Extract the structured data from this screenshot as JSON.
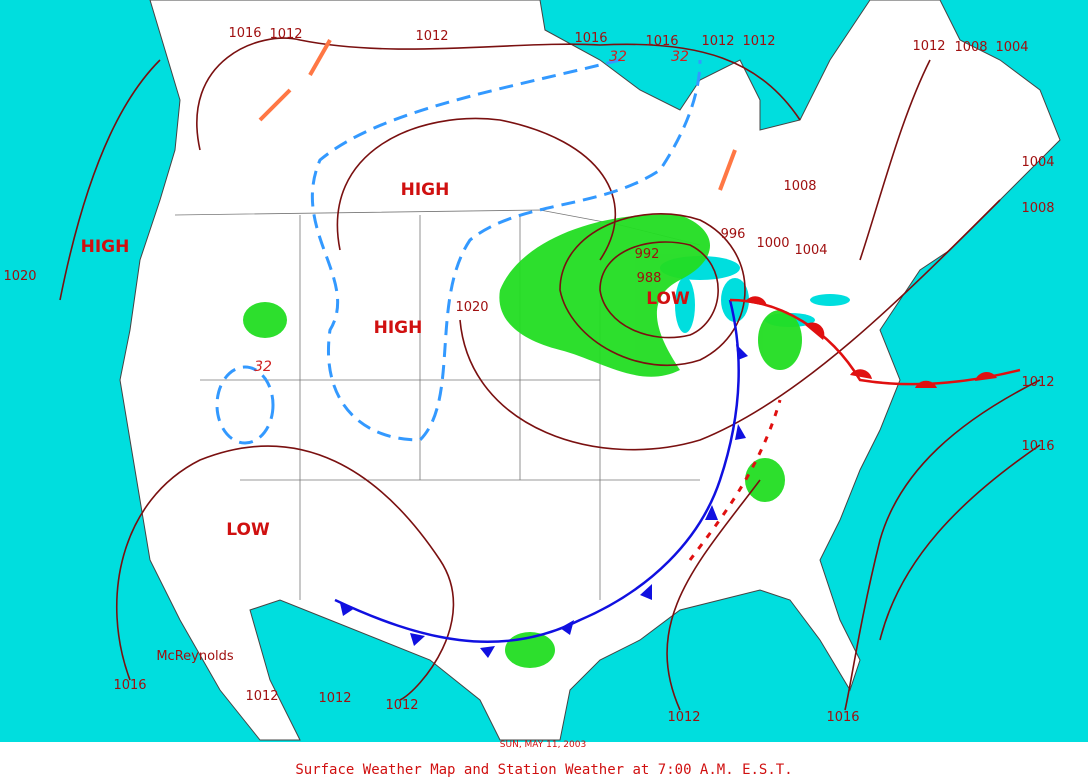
{
  "map": {
    "caption": "Surface Weather Map and Station Weather at 7:00 A.M. E.S.T.",
    "date": "SUN, MAY 11, 2003",
    "author": "McReynolds",
    "systems": [
      "HIGH",
      "HIGH",
      "HIGH",
      "LOW",
      "LOW"
    ],
    "isobars": [
      "1016",
      "1012",
      "1012",
      "1016",
      "1016",
      "1012",
      "1012",
      "1012",
      "1008",
      "1004",
      "1004",
      "1008",
      "1008",
      "996",
      "1000",
      "1004",
      "992",
      "988",
      "1020",
      "1020",
      "1016",
      "1012",
      "1012",
      "1012",
      "1012",
      "1016",
      "1012",
      "1016"
    ],
    "temperatures": [
      "32",
      "32",
      "32"
    ]
  }
}
